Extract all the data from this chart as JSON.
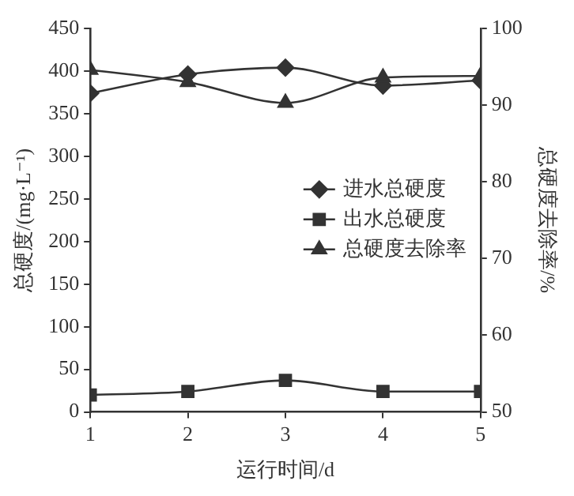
{
  "chart_data": {
    "type": "line",
    "xlabel": "运行时间/d",
    "ylabel": "总硬度/(mg·L⁻¹)",
    "y2label": "总硬度去除率/%",
    "x": [
      1,
      2,
      3,
      4,
      5
    ],
    "xlim": [
      1,
      5
    ],
    "xticks": [
      1,
      2,
      3,
      4,
      5
    ],
    "ylim": [
      0,
      450
    ],
    "yticks": [
      0,
      50,
      100,
      150,
      200,
      250,
      300,
      350,
      400,
      450
    ],
    "y2lim": [
      50,
      100
    ],
    "y2ticks": [
      50,
      60,
      70,
      80,
      90,
      100
    ],
    "series": [
      {
        "name": "进水总硬度",
        "color": "#333333",
        "marker": "diamond",
        "values": [
          374,
          396,
          404,
          383,
          389
        ]
      },
      {
        "name": "出水总硬度",
        "color": "#333333",
        "marker": "square",
        "values": [
          20,
          24,
          37,
          24,
          24
        ]
      },
      {
        "name": "总硬度去除率",
        "color": "#333333",
        "marker": "triangle",
        "axis": "y2",
        "values": [
          94.6,
          93,
          90.3,
          93.6,
          93.8
        ]
      }
    ],
    "legend": "center right",
    "grid": false
  }
}
